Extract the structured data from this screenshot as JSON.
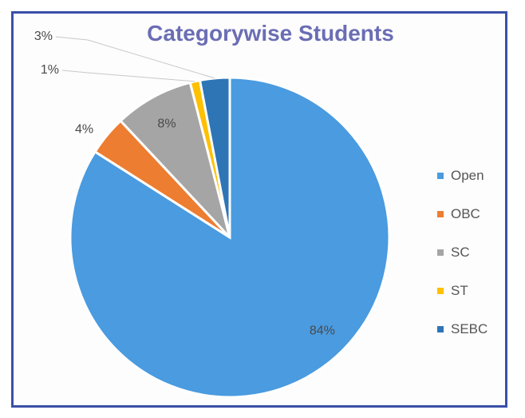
{
  "chart_data": {
    "type": "pie",
    "title": "Categorywise Students",
    "categories": [
      "Open",
      "OBC",
      "SC",
      "ST",
      "SEBC"
    ],
    "values": [
      84,
      4,
      8,
      1,
      3
    ],
    "labels": [
      "84%",
      "4%",
      "8%",
      "1%",
      "3%"
    ],
    "colors": [
      "#4a9be0",
      "#ed7d31",
      "#a5a5a5",
      "#ffc000",
      "#2e75b6"
    ],
    "legend_position": "right"
  }
}
